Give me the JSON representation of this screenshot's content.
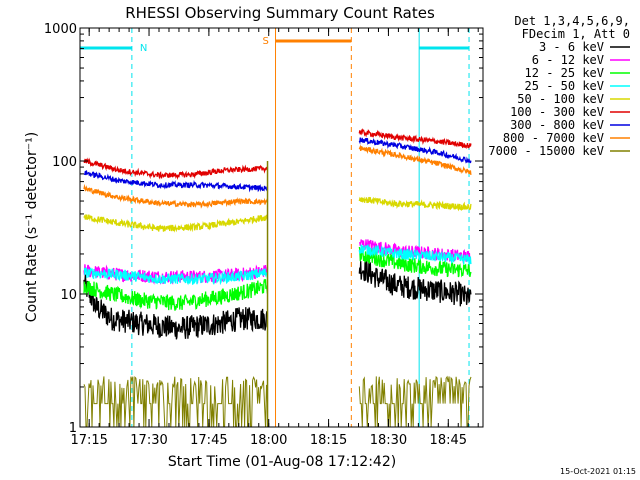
{
  "chart_data": {
    "type": "line",
    "title": "RHESSI Observing Summary Count Rates",
    "xlabel": "Start Time (01-Aug-08 17:12:42)",
    "ylabel": "Count Rate (s⁻¹ detector⁻¹)",
    "ylog": true,
    "ylim": [
      1,
      1000
    ],
    "xlim_minutes_from_1712": [
      0,
      101
    ],
    "x_ticks": [
      {
        "label": "17:15",
        "minute": 2.3
      },
      {
        "label": "17:30",
        "minute": 17.3
      },
      {
        "label": "17:45",
        "minute": 32.3
      },
      {
        "label": "18:00",
        "minute": 47.3
      },
      {
        "label": "18:15",
        "minute": 62.3
      },
      {
        "label": "18:30",
        "minute": 77.3
      },
      {
        "label": "18:45",
        "minute": 92.3
      }
    ],
    "y_ticks": [
      {
        "label": "1",
        "value": 1
      },
      {
        "label": "10",
        "value": 10
      },
      {
        "label": "100",
        "value": 100
      },
      {
        "label": "1000",
        "value": 1000
      }
    ],
    "legend_header": [
      "Det 1,3,4,5,6,9,",
      "FDecim 1, Att 0"
    ],
    "legend_position": "right",
    "footer": "15-Oct-2021 01:15",
    "series": [
      {
        "name": "3 - 6 keV",
        "color": "#000000",
        "seg1": {
          "start": 1.0,
          "end": 47.0,
          "points": [
            [
              1,
              12
            ],
            [
              4,
              8
            ],
            [
              8,
              6.5
            ],
            [
              15,
              6
            ],
            [
              25,
              5.5
            ],
            [
              35,
              6
            ],
            [
              40,
              6.5
            ],
            [
              47,
              6.5
            ]
          ]
        },
        "seg2": {
          "start": 70.0,
          "end": 98.0,
          "points": [
            [
              70,
              16
            ],
            [
              75,
              13
            ],
            [
              80,
              11.5
            ],
            [
              85,
              11
            ],
            [
              90,
              10.5
            ],
            [
              95,
              10
            ],
            [
              98,
              9
            ]
          ]
        },
        "noise": 0.09
      },
      {
        "name": "6 - 12 keV",
        "color": "#ff00ff",
        "seg1": {
          "start": 1.0,
          "end": 47.0,
          "points": [
            [
              1,
              15
            ],
            [
              10,
              14
            ],
            [
              20,
              13.5
            ],
            [
              30,
              13.5
            ],
            [
              40,
              14
            ],
            [
              47,
              15
            ]
          ]
        },
        "seg2": {
          "start": 70.0,
          "end": 98.0,
          "points": [
            [
              70,
              24
            ],
            [
              80,
              21
            ],
            [
              90,
              20
            ],
            [
              98,
              19
            ]
          ]
        },
        "noise": 0.05
      },
      {
        "name": "12 - 25 keV",
        "color": "#00ff00",
        "seg1": {
          "start": 1.0,
          "end": 47.0,
          "points": [
            [
              1,
              11.5
            ],
            [
              8,
              10
            ],
            [
              15,
              9
            ],
            [
              25,
              8.5
            ],
            [
              35,
              9.5
            ],
            [
              42,
              10.5
            ],
            [
              47,
              11.5
            ]
          ]
        },
        "seg2": {
          "start": 70.0,
          "end": 98.0,
          "points": [
            [
              70,
              20
            ],
            [
              80,
              17
            ],
            [
              90,
              15.5
            ],
            [
              98,
              15
            ]
          ]
        },
        "noise": 0.06
      },
      {
        "name": "25 - 50 keV",
        "color": "#00ffff",
        "seg1": {
          "start": 1.0,
          "end": 47.0,
          "points": [
            [
              1,
              14.5
            ],
            [
              10,
              14
            ],
            [
              20,
              13
            ],
            [
              30,
              13
            ],
            [
              40,
              13.5
            ],
            [
              47,
              14.5
            ]
          ]
        },
        "seg2": {
          "start": 70.0,
          "end": 98.0,
          "points": [
            [
              70,
              22
            ],
            [
              80,
              20
            ],
            [
              90,
              19
            ],
            [
              98,
              18
            ]
          ]
        },
        "noise": 0.04
      },
      {
        "name": "50 - 100 keV",
        "color": "#d8d800",
        "seg1": {
          "start": 1.0,
          "end": 47.0,
          "points": [
            [
              1,
              38
            ],
            [
              10,
              34
            ],
            [
              20,
              31
            ],
            [
              30,
              32
            ],
            [
              40,
              35
            ],
            [
              47,
              38
            ]
          ]
        },
        "seg2": {
          "start": 70.0,
          "end": 98.0,
          "points": [
            [
              70,
              52
            ],
            [
              78,
              48
            ],
            [
              86,
              47
            ],
            [
              98,
              45
            ]
          ]
        },
        "noise": 0.025
      },
      {
        "name": "100 - 300 keV",
        "color": "#e00000",
        "seg1": {
          "start": 1.0,
          "end": 47.0,
          "points": [
            [
              1,
              100
            ],
            [
              10,
              85
            ],
            [
              20,
              78
            ],
            [
              28,
              79
            ],
            [
              36,
              85
            ],
            [
              47,
              88
            ]
          ]
        },
        "seg2": {
          "start": 70.0,
          "end": 98.0,
          "points": [
            [
              70,
              165
            ],
            [
              80,
              150
            ],
            [
              90,
              140
            ],
            [
              98,
              130
            ]
          ]
        },
        "noise": 0.02
      },
      {
        "name": "300 - 800 keV",
        "color": "#0000e0",
        "seg1": {
          "start": 1.0,
          "end": 47.0,
          "points": [
            [
              1,
              82
            ],
            [
              10,
              71
            ],
            [
              20,
              66
            ],
            [
              30,
              66
            ],
            [
              40,
              64
            ],
            [
              47,
              62
            ]
          ]
        },
        "seg2": {
          "start": 70.0,
          "end": 98.0,
          "points": [
            [
              70,
              145
            ],
            [
              80,
              130
            ],
            [
              90,
              115
            ],
            [
              98,
              100
            ]
          ]
        },
        "noise": 0.02
      },
      {
        "name": "800 - 7000 keV",
        "color": "#ff8000",
        "seg1": {
          "start": 1.0,
          "end": 47.0,
          "points": [
            [
              1,
              62
            ],
            [
              10,
              53
            ],
            [
              20,
              48
            ],
            [
              30,
              47
            ],
            [
              40,
              50
            ],
            [
              47,
              49
            ]
          ]
        },
        "seg2": {
          "start": 70.0,
          "end": 98.0,
          "points": [
            [
              70,
              125
            ],
            [
              80,
              110
            ],
            [
              90,
              95
            ],
            [
              98,
              82
            ]
          ]
        },
        "noise": 0.02
      },
      {
        "name": "7000 - 15000 keV",
        "color": "#808000",
        "seg1": {
          "start": 1.0,
          "end": 47.0,
          "points": [
            [
              1,
              1.5
            ],
            [
              47,
              1.5
            ]
          ]
        },
        "seg2": {
          "start": 70.0,
          "end": 98.0,
          "points": [
            [
              70,
              1.5
            ],
            [
              98,
              1.5
            ]
          ]
        },
        "noise": 0
      }
    ],
    "annotations": {
      "night": [
        {
          "start": 0.0,
          "end": 13.0,
          "label": "N",
          "color": "#00e5ee"
        },
        {
          "start": 85.0,
          "end": 97.5,
          "label": "",
          "color": "#00e5ee"
        }
      ],
      "saa": [
        {
          "start": 49.0,
          "end": 68.0,
          "label": "S",
          "color": "#ff8000"
        }
      ]
    },
    "data_gap": [
      47.0,
      70.0
    ]
  }
}
